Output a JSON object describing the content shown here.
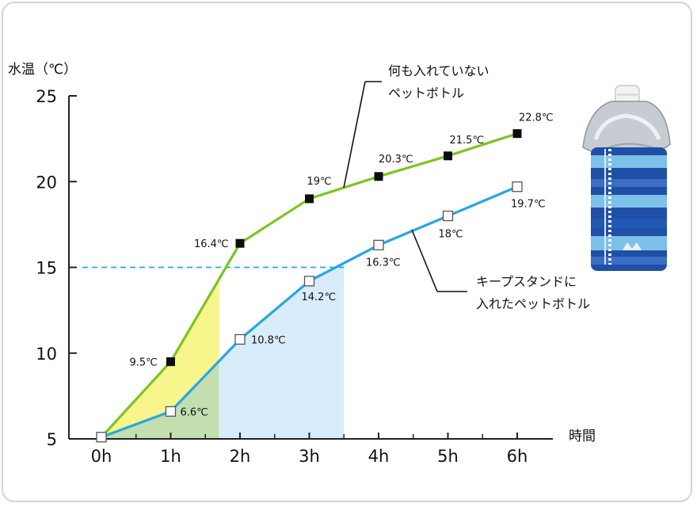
{
  "chart_data": {
    "type": "line",
    "ylabel": "水温（℃）",
    "xlabel": "時間",
    "categories": [
      "0h",
      "1h",
      "2h",
      "3h",
      "4h",
      "5h",
      "6h"
    ],
    "yticks": [
      "25",
      "20",
      "15",
      "10",
      "5"
    ],
    "ylim": [
      5,
      25
    ],
    "grid": false,
    "series": [
      {
        "name": "何も入れていない ペットボトル",
        "annotation_lines": [
          "何も入れていない",
          "ペットボトル"
        ],
        "color": "#7cc520",
        "marker": "filled-square",
        "points": [
          {
            "x": 0,
            "y": 5.1,
            "label": ""
          },
          {
            "x": 1,
            "y": 9.5,
            "label": "9.5℃"
          },
          {
            "x": 2,
            "y": 16.4,
            "label": "16.4℃"
          },
          {
            "x": 3,
            "y": 19.0,
            "label": "19℃"
          },
          {
            "x": 4,
            "y": 20.3,
            "label": "20.3℃"
          },
          {
            "x": 5,
            "y": 21.5,
            "label": "21.5℃"
          },
          {
            "x": 6,
            "y": 22.8,
            "label": "22.8℃"
          }
        ]
      },
      {
        "name": "キープスタンドに 入れたペットボトル",
        "annotation_lines": [
          "キープスタンドに",
          "入れたペットボトル"
        ],
        "color": "#27a6e6",
        "marker": "open-square",
        "points": [
          {
            "x": 0,
            "y": 5.1,
            "label": ""
          },
          {
            "x": 1,
            "y": 6.6,
            "label": "6.6℃"
          },
          {
            "x": 2,
            "y": 10.8,
            "label": "10.8℃"
          },
          {
            "x": 3,
            "y": 14.2,
            "label": "14.2℃"
          },
          {
            "x": 4,
            "y": 16.3,
            "label": "16.3℃"
          },
          {
            "x": 5,
            "y": 18.0,
            "label": "18℃"
          },
          {
            "x": 6,
            "y": 19.7,
            "label": "19.7℃"
          }
        ]
      }
    ],
    "reference_line": {
      "y": 15,
      "style": "dashed",
      "color": "#27a6e6",
      "x_to": 3.5
    },
    "shaded_regions": [
      {
        "series": "何も入れていない ペットボトル",
        "x_from": 0,
        "x_to": 1.7,
        "color": "#f8f58d"
      },
      {
        "series": "キープスタンドに 入れたペットボトル",
        "x_from": 0,
        "x_to": 1.7,
        "color": "#c3dfaf"
      },
      {
        "series": "キープスタンドに 入れたペットボトル",
        "x_from": 1.7,
        "x_to": 3.5,
        "color": "#d9ecfb"
      }
    ]
  },
  "image": {
    "name": "keep-stand-bottle-photo"
  }
}
